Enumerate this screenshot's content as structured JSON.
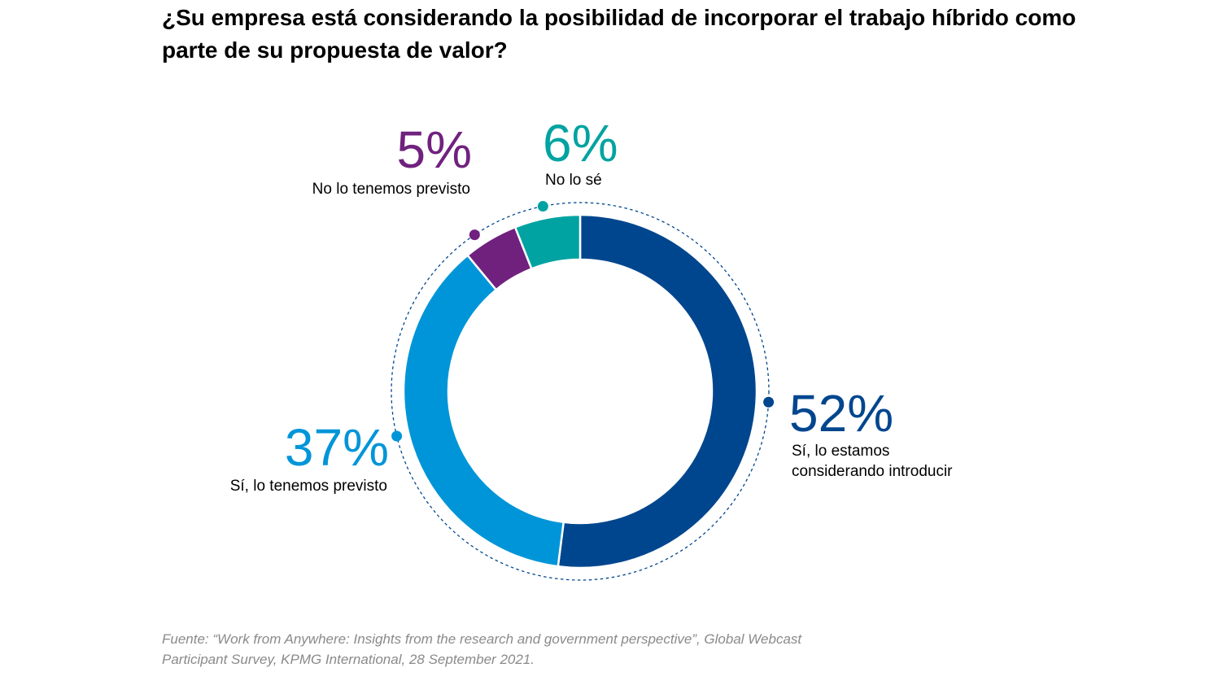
{
  "title": "¿Su empresa está considerando la posibilidad de incorporar el trabajo híbrido como parte de su propuesta de valor?",
  "source": "Fuente: “Work from Anywhere: Insights from the research and government perspective”, Global Webcast Participant Survey, KPMG International, 28 September 2021.",
  "chart_data": {
    "type": "pie",
    "donut": true,
    "title": "¿Su empresa está considerando la posibilidad de incorporar el trabajo híbrido como parte de su propuesta de valor?",
    "slices": [
      {
        "label_lines": [
          "Sí, lo estamos",
          "considerando introducir"
        ],
        "value": 52,
        "value_label": "52%",
        "color": "#00468e"
      },
      {
        "label_lines": [
          "Sí, lo tenemos previsto"
        ],
        "value": 37,
        "value_label": "37%",
        "color": "#0095d8"
      },
      {
        "label_lines": [
          "No lo tenemos previsto"
        ],
        "value": 5,
        "value_label": "5%",
        "color": "#70217e"
      },
      {
        "label_lines": [
          "No lo sé"
        ],
        "value": 6,
        "value_label": "6%",
        "color": "#00a3a1"
      }
    ],
    "start": "top",
    "direction": "clockwise",
    "legend": "none",
    "outline": "dashed-circle"
  }
}
